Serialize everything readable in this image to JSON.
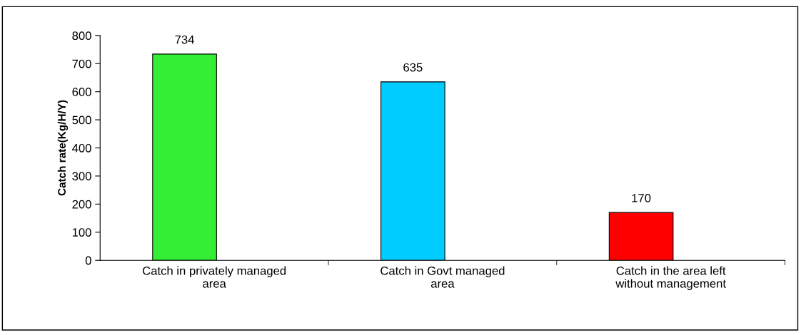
{
  "chart_data": {
    "type": "bar",
    "ylabel": "Catch rate(Kg/H/Y)",
    "categories": [
      "Catch in privately managed\narea",
      "Catch in Govt managed\narea",
      "Catch in the area left\nwithout management"
    ],
    "values": [
      734,
      635,
      170
    ],
    "colors": [
      "#33ee33",
      "#00ccff",
      "#ff0000"
    ],
    "ylim": [
      0,
      800
    ],
    "yticks": [
      0,
      100,
      200,
      300,
      400,
      500,
      600,
      700,
      800
    ],
    "data_labels": true,
    "grid": false,
    "legend": false
  }
}
